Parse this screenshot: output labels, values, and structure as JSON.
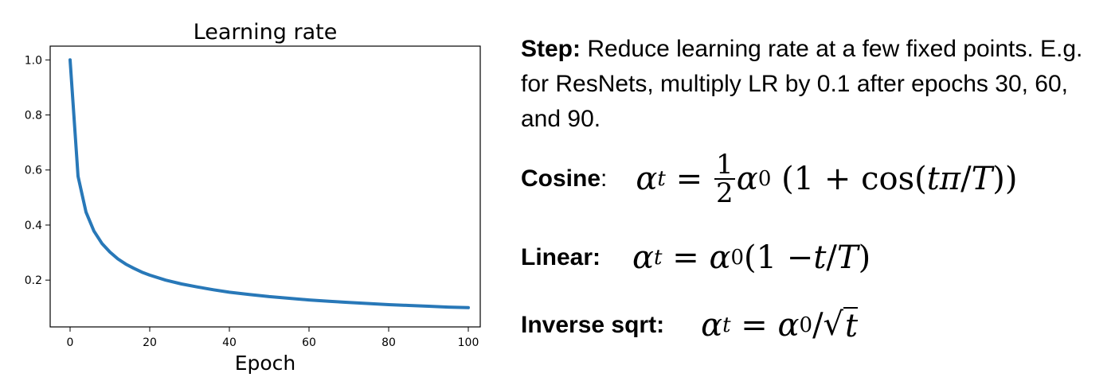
{
  "chart_data": {
    "type": "line",
    "title": "Learning rate",
    "xlabel": "Epoch",
    "ylabel": "",
    "xlim": [
      -5,
      103
    ],
    "ylim": [
      0.03,
      1.05
    ],
    "x_ticks": [
      0,
      20,
      40,
      60,
      80,
      100
    ],
    "y_ticks": [
      0.2,
      0.4,
      0.6,
      0.8,
      1.0
    ],
    "y_tick_labels": [
      "0.2",
      "0.4",
      "0.6",
      "0.8",
      "1.0"
    ],
    "grid": false,
    "line_color": "#2878b8",
    "series": [
      {
        "x": [
          0,
          2,
          4,
          6,
          8,
          10,
          12,
          14,
          16,
          18,
          20,
          24,
          28,
          32,
          36,
          40,
          45,
          50,
          55,
          60,
          65,
          70,
          75,
          80,
          85,
          90,
          95,
          100
        ],
        "y": [
          1.0,
          0.577,
          0.447,
          0.378,
          0.333,
          0.302,
          0.277,
          0.258,
          0.243,
          0.229,
          0.218,
          0.2,
          0.186,
          0.175,
          0.165,
          0.156,
          0.148,
          0.14,
          0.134,
          0.128,
          0.123,
          0.119,
          0.115,
          0.111,
          0.108,
          0.105,
          0.102,
          0.1
        ]
      }
    ]
  },
  "notes": {
    "step_label": "Step:",
    "step_text": "Reduce learning rate at a few fixed points. E.g. for ResNets, multiply LR by 0.1 after epochs 30, 60, and 90.",
    "cosine_label": "Cosine",
    "linear_label": "Linear:",
    "inverse_label": "Inverse sqrt:"
  }
}
